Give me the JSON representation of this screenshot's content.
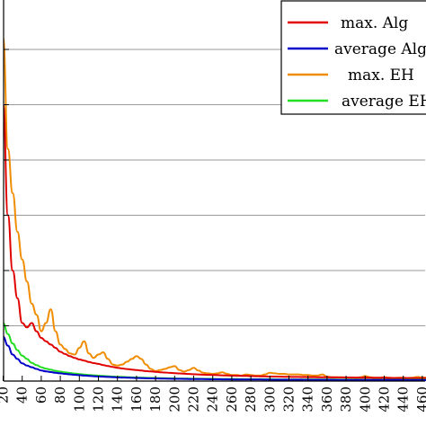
{
  "chart_data": {
    "type": "line",
    "xlabel": "",
    "ylabel": "",
    "grid": "horizontal",
    "legend_placement": "top-right",
    "xlim": [
      20,
      470
    ],
    "x_ticks": [
      20,
      40,
      60,
      80,
      100,
      120,
      140,
      160,
      180,
      200,
      220,
      240,
      260,
      280,
      300,
      320,
      340,
      360,
      380,
      400,
      420,
      440,
      460
    ],
    "x": [
      20,
      25,
      30,
      35,
      40,
      45,
      50,
      55,
      60,
      65,
      70,
      75,
      80,
      85,
      90,
      95,
      100,
      105,
      110,
      115,
      120,
      125,
      130,
      135,
      140,
      145,
      150,
      155,
      160,
      165,
      170,
      175,
      180,
      185,
      190,
      195,
      200,
      205,
      210,
      215,
      220,
      225,
      230,
      235,
      240,
      245,
      250,
      255,
      260,
      265,
      270,
      275,
      280,
      285,
      290,
      295,
      300,
      305,
      310,
      315,
      320,
      325,
      330,
      335,
      340,
      345,
      350,
      355,
      360,
      365,
      370,
      375,
      380,
      385,
      390,
      395,
      400,
      405,
      410,
      415,
      420,
      425,
      430,
      435,
      440,
      445,
      450,
      455,
      460,
      465,
      470
    ],
    "series": [
      {
        "name": "max.  Alg",
        "color": "#e00000",
        "values": [
          5.0,
          3.0,
          2.0,
          1.5,
          1.05,
          0.97,
          1.05,
          0.9,
          0.78,
          0.72,
          0.66,
          0.6,
          0.53,
          0.49,
          0.45,
          0.42,
          0.39,
          0.37,
          0.345,
          0.325,
          0.31,
          0.29,
          0.272,
          0.255,
          0.24,
          0.228,
          0.218,
          0.208,
          0.198,
          0.19,
          0.181,
          0.174,
          0.167,
          0.16,
          0.154,
          0.148,
          0.143,
          0.138,
          0.133,
          0.128,
          0.124,
          0.12,
          0.116,
          0.113,
          0.11,
          0.107,
          0.104,
          0.101,
          0.098,
          0.096,
          0.094,
          0.092,
          0.09,
          0.088,
          0.086,
          0.084,
          0.082,
          0.081,
          0.079,
          0.078,
          0.077,
          0.075,
          0.074,
          0.073,
          0.072,
          0.071,
          0.07,
          0.069,
          0.068,
          0.067,
          0.066,
          0.065,
          0.064,
          0.063,
          0.062,
          0.061,
          0.06,
          0.06,
          0.059,
          0.058,
          0.058,
          0.057,
          0.056,
          0.056,
          0.055,
          0.055,
          0.054,
          0.054,
          0.053,
          0.053,
          0.052
        ]
      },
      {
        "name": "average Alg",
        "color": "#0000c8",
        "values": [
          0.8,
          0.64,
          0.48,
          0.4,
          0.32,
          0.28,
          0.25,
          0.22,
          0.19,
          0.175,
          0.162,
          0.15,
          0.14,
          0.13,
          0.122,
          0.114,
          0.107,
          0.1,
          0.094,
          0.088,
          0.083,
          0.079,
          0.075,
          0.071,
          0.067,
          0.064,
          0.061,
          0.058,
          0.055,
          0.053,
          0.051,
          0.049,
          0.047,
          0.045,
          0.044,
          0.042,
          0.041,
          0.04,
          0.039,
          0.038,
          0.037,
          0.036,
          0.035,
          0.034,
          0.033,
          0.032,
          0.031,
          0.031,
          0.03,
          0.029,
          0.029,
          0.028,
          0.028,
          0.027,
          0.027,
          0.026,
          0.026,
          0.025,
          0.025,
          0.025,
          0.024,
          0.024,
          0.024,
          0.023,
          0.023,
          0.023,
          0.022,
          0.022,
          0.022,
          0.022,
          0.021,
          0.021,
          0.021,
          0.021,
          0.02,
          0.02,
          0.02,
          0.02,
          0.02,
          0.019,
          0.019,
          0.019,
          0.019,
          0.019,
          0.019,
          0.018,
          0.018,
          0.018,
          0.018,
          0.018,
          0.018
        ]
      },
      {
        "name": "max. EH",
        "color": "#f08c00",
        "values": [
          6.2,
          4.2,
          3.4,
          2.7,
          2.2,
          1.8,
          1.4,
          1.2,
          0.9,
          1.05,
          1.3,
          0.9,
          0.66,
          0.58,
          0.5,
          0.48,
          0.6,
          0.72,
          0.5,
          0.42,
          0.48,
          0.52,
          0.4,
          0.3,
          0.28,
          0.3,
          0.35,
          0.4,
          0.45,
          0.4,
          0.3,
          0.22,
          0.18,
          0.2,
          0.22,
          0.25,
          0.27,
          0.2,
          0.17,
          0.2,
          0.24,
          0.19,
          0.15,
          0.14,
          0.13,
          0.14,
          0.16,
          0.13,
          0.11,
          0.11,
          0.1,
          0.12,
          0.11,
          0.1,
          0.1,
          0.12,
          0.15,
          0.14,
          0.13,
          0.13,
          0.12,
          0.12,
          0.12,
          0.11,
          0.11,
          0.1,
          0.1,
          0.12,
          0.08,
          0.07,
          0.07,
          0.07,
          0.065,
          0.06,
          0.06,
          0.07,
          0.09,
          0.07,
          0.06,
          0.06,
          0.07,
          0.06,
          0.055,
          0.06,
          0.06,
          0.055,
          0.06,
          0.075,
          0.065,
          0.06,
          0.06
        ]
      },
      {
        "name": "average EH",
        "color": "#22dd22",
        "values": [
          1.05,
          0.85,
          0.68,
          0.56,
          0.46,
          0.4,
          0.33,
          0.29,
          0.25,
          0.225,
          0.205,
          0.185,
          0.17,
          0.158,
          0.146,
          0.136,
          0.127,
          0.119,
          0.111,
          0.104,
          0.098,
          0.092,
          0.087,
          0.082,
          0.078,
          0.074,
          0.07,
          0.067,
          0.064,
          0.061,
          0.059,
          0.057,
          0.055,
          0.053,
          0.051,
          0.049,
          0.048,
          0.046,
          0.045,
          0.044,
          0.043,
          0.042,
          0.041,
          0.04,
          0.039,
          0.038,
          0.037,
          0.036,
          0.036,
          0.035,
          0.034,
          0.034,
          0.033,
          0.033,
          0.032,
          0.032,
          0.031,
          0.031,
          0.03,
          0.03,
          0.03,
          0.029,
          0.029,
          0.029,
          0.028,
          0.028,
          0.028,
          0.027,
          0.027,
          0.027,
          0.027,
          0.026,
          0.026,
          0.026,
          0.026,
          0.026,
          0.025,
          0.025,
          0.025,
          0.025,
          0.025,
          0.025,
          0.024,
          0.024,
          0.024,
          0.024,
          0.024,
          0.024,
          0.024,
          0.023,
          0.023
        ]
      }
    ]
  }
}
